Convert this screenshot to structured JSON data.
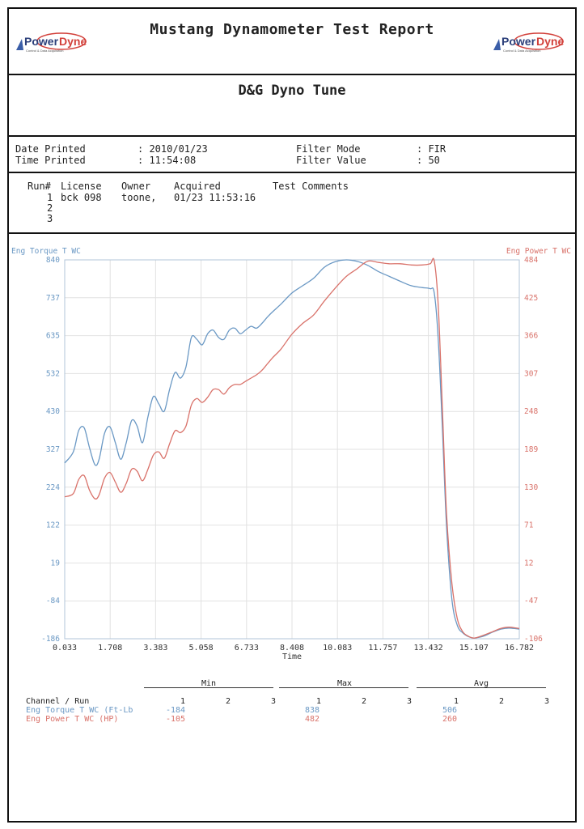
{
  "header": {
    "title": "Mustang Dynamometer Test Report",
    "logo_text_power": "Power",
    "logo_text_dyne": "Dyne",
    "logo_tagline": "Control & Data Acquisition",
    "subtitle": "D&G Dyno Tune"
  },
  "print_info": {
    "date_label": "Date Printed",
    "date_value": ": 2010/01/23",
    "time_label": "Time Printed",
    "time_value": ": 11:54:08",
    "filter_mode_label": "Filter Mode",
    "filter_mode_value": ": FIR",
    "filter_value_label": "Filter Value",
    "filter_value_value": ": 50"
  },
  "runs": {
    "headers": {
      "run": "Run#",
      "license": "License",
      "owner": "Owner",
      "acquired": "Acquired",
      "comments": "Test Comments"
    },
    "rows": [
      {
        "run": "1",
        "license": "bck 098",
        "owner": "toone,",
        "acquired": "01/23 11:53:16",
        "comments": ""
      },
      {
        "run": "2",
        "license": "",
        "owner": "",
        "acquired": "",
        "comments": ""
      },
      {
        "run": "3",
        "license": "",
        "owner": "",
        "acquired": "",
        "comments": ""
      }
    ]
  },
  "chart_data": {
    "type": "line",
    "xlabel": "Time",
    "left_axis_label": "Eng Torque T WC",
    "right_axis_label": "Eng Power T WC",
    "x_ticks": [
      "0.033",
      "1.708",
      "3.383",
      "5.058",
      "6.733",
      "8.408",
      "10.083",
      "11.757",
      "13.432",
      "15.107",
      "16.782"
    ],
    "left_ticks": [
      "840",
      "737",
      "635",
      "532",
      "430",
      "327",
      "224",
      "122",
      "19",
      "-84",
      "-186"
    ],
    "right_ticks": [
      "484",
      "425",
      "366",
      "307",
      "248",
      "189",
      "130",
      "71",
      "12",
      "-47",
      "-106"
    ],
    "xlim": [
      0.033,
      16.782
    ],
    "ylim_left": [
      -186,
      840
    ],
    "ylim_right": [
      -106,
      484
    ],
    "grid": true,
    "series": [
      {
        "name": "Eng Torque T WC",
        "axis": "left",
        "color": "#6a98c4",
        "x": [
          0.033,
          0.35,
          0.55,
          0.75,
          0.95,
          1.15,
          1.3,
          1.5,
          1.7,
          1.9,
          2.1,
          2.3,
          2.5,
          2.7,
          2.9,
          3.1,
          3.3,
          3.5,
          3.7,
          3.9,
          4.1,
          4.3,
          4.5,
          4.7,
          4.9,
          5.1,
          5.3,
          5.5,
          5.7,
          5.9,
          6.1,
          6.3,
          6.5,
          6.7,
          6.9,
          7.1,
          7.3,
          7.5,
          7.7,
          8.0,
          8.4,
          8.8,
          9.2,
          9.6,
          10.0,
          10.4,
          10.8,
          11.2,
          11.6,
          12.0,
          12.4,
          12.8,
          13.2,
          13.5,
          13.65,
          13.8,
          13.95,
          14.1,
          14.3,
          14.5,
          14.7,
          14.9,
          15.1,
          15.3,
          15.5,
          15.8,
          16.1,
          16.4,
          16.782
        ],
        "y": [
          290,
          320,
          378,
          385,
          330,
          285,
          300,
          370,
          388,
          345,
          300,
          345,
          405,
          390,
          345,
          415,
          470,
          450,
          430,
          490,
          535,
          520,
          550,
          630,
          625,
          610,
          640,
          650,
          630,
          625,
          650,
          655,
          640,
          650,
          660,
          655,
          668,
          685,
          700,
          720,
          750,
          770,
          790,
          820,
          835,
          840,
          836,
          825,
          808,
          795,
          782,
          770,
          765,
          762,
          750,
          620,
          380,
          120,
          -80,
          -150,
          -170,
          -180,
          -184,
          -182,
          -178,
          -168,
          -160,
          -157,
          -160
        ]
      },
      {
        "name": "Eng Power T WC",
        "axis": "right",
        "color": "#d9726a",
        "x": [
          0.033,
          0.35,
          0.55,
          0.75,
          0.95,
          1.15,
          1.3,
          1.5,
          1.7,
          1.9,
          2.1,
          2.3,
          2.5,
          2.7,
          2.9,
          3.1,
          3.3,
          3.5,
          3.7,
          3.9,
          4.1,
          4.3,
          4.5,
          4.7,
          4.9,
          5.1,
          5.3,
          5.5,
          5.7,
          5.9,
          6.1,
          6.3,
          6.5,
          6.7,
          6.9,
          7.1,
          7.3,
          7.5,
          7.7,
          8.0,
          8.4,
          8.8,
          9.2,
          9.6,
          10.0,
          10.4,
          10.8,
          11.2,
          11.6,
          12.0,
          12.4,
          12.8,
          13.2,
          13.5,
          13.65,
          13.8,
          13.95,
          14.1,
          14.3,
          14.5,
          14.7,
          14.9,
          15.1,
          15.3,
          15.5,
          15.8,
          16.1,
          16.4,
          16.782
        ],
        "y": [
          115,
          120,
          142,
          148,
          125,
          112,
          118,
          144,
          153,
          138,
          122,
          136,
          158,
          155,
          140,
          158,
          180,
          185,
          175,
          198,
          218,
          215,
          225,
          258,
          268,
          262,
          270,
          282,
          282,
          275,
          285,
          290,
          290,
          295,
          300,
          305,
          312,
          322,
          332,
          345,
          368,
          385,
          398,
          420,
          440,
          458,
          470,
          482,
          480,
          478,
          478,
          476,
          476,
          478,
          482,
          410,
          250,
          90,
          -20,
          -75,
          -95,
          -102,
          -105,
          -103,
          -100,
          -95,
          -90,
          -88,
          -90
        ]
      }
    ]
  },
  "stats": {
    "group_min": "Min",
    "group_max": "Max",
    "group_avg": "Avg",
    "header_label": "Channel / Run",
    "run_cols": [
      "1",
      "2",
      "3"
    ],
    "rows": [
      {
        "label": "Eng Torque T WC (Ft-Lb",
        "min": "-184",
        "max": "838",
        "avg": "506"
      },
      {
        "label": "Eng Power T WC (HP)",
        "min": "-105",
        "max": "482",
        "avg": "260"
      }
    ]
  }
}
